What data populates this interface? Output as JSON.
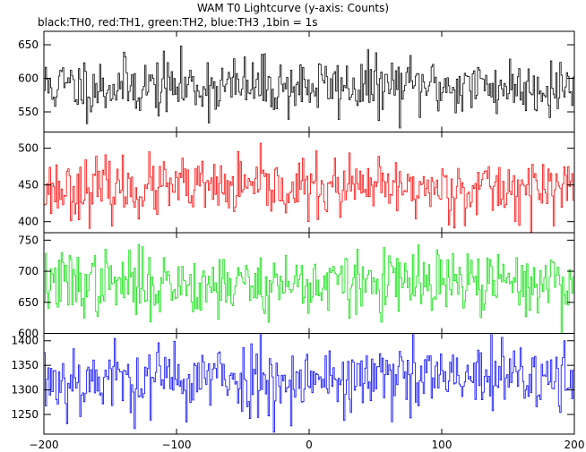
{
  "chart_data": {
    "type": "line",
    "title": "WAM T0 Lightcurve (y-axis: Counts)",
    "subtitle": "black:TH0, red:TH1, green:TH2, blue:TH3 ,1bin = 1s",
    "xlim": [
      -200,
      200
    ],
    "xticks": [
      -200,
      -100,
      0,
      100,
      200
    ],
    "grid": false,
    "panels": [
      {
        "series_name": "TH0",
        "color": "#000000",
        "ylim": [
          520,
          670
        ],
        "yticks": [
          550,
          600,
          650
        ],
        "mean": 588,
        "sd": 22,
        "seed": 11
      },
      {
        "series_name": "TH1",
        "color": "#ff0000",
        "ylim": [
          385,
          522
        ],
        "yticks": [
          400,
          450,
          500
        ],
        "mean": 445,
        "sd": 20,
        "seed": 23
      },
      {
        "series_name": "TH2",
        "color": "#00e000",
        "ylim": [
          600,
          762
        ],
        "yticks": [
          600,
          650,
          700,
          750
        ],
        "mean": 680,
        "sd": 26,
        "seed": 37
      },
      {
        "series_name": "TH3",
        "color": "#0000ff",
        "ylim": [
          1210,
          1415
        ],
        "yticks": [
          1250,
          1300,
          1350,
          1400
        ],
        "mean": 1322,
        "sd": 38,
        "seed": 53
      }
    ]
  }
}
